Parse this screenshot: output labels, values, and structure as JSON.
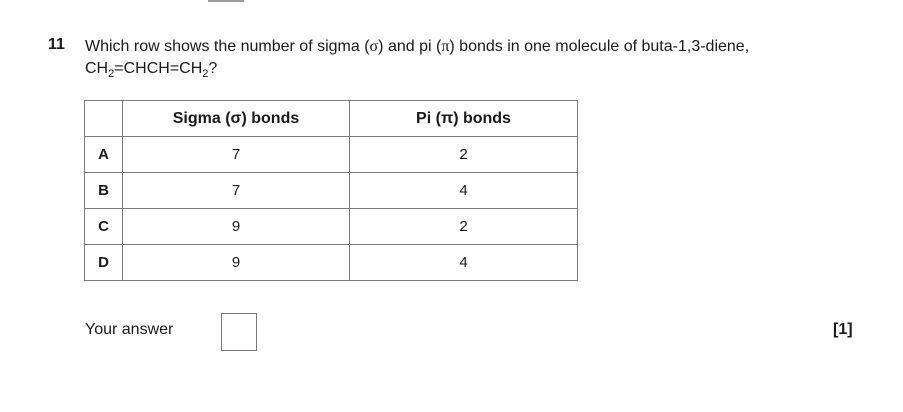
{
  "question": {
    "number": "11",
    "text_line1_a": "Which row shows the number of sigma (",
    "sigma_symbol": "σ",
    "text_line1_b": ") and pi (",
    "pi_symbol": "π",
    "text_line1_c": ") bonds in one molecule of buta-1,3-diene,",
    "formula_parts": [
      "CH",
      "2",
      "=CHCH=CH",
      "2",
      "?"
    ]
  },
  "table": {
    "headers": [
      "",
      "Sigma (σ) bonds",
      "Pi (π) bonds"
    ],
    "rows": [
      {
        "label": "A",
        "sigma": "7",
        "pi": "2"
      },
      {
        "label": "B",
        "sigma": "7",
        "pi": "4"
      },
      {
        "label": "C",
        "sigma": "9",
        "pi": "2"
      },
      {
        "label": "D",
        "sigma": "9",
        "pi": "4"
      }
    ]
  },
  "answer": {
    "label": "Your answer",
    "value": ""
  },
  "marks": "[1]"
}
